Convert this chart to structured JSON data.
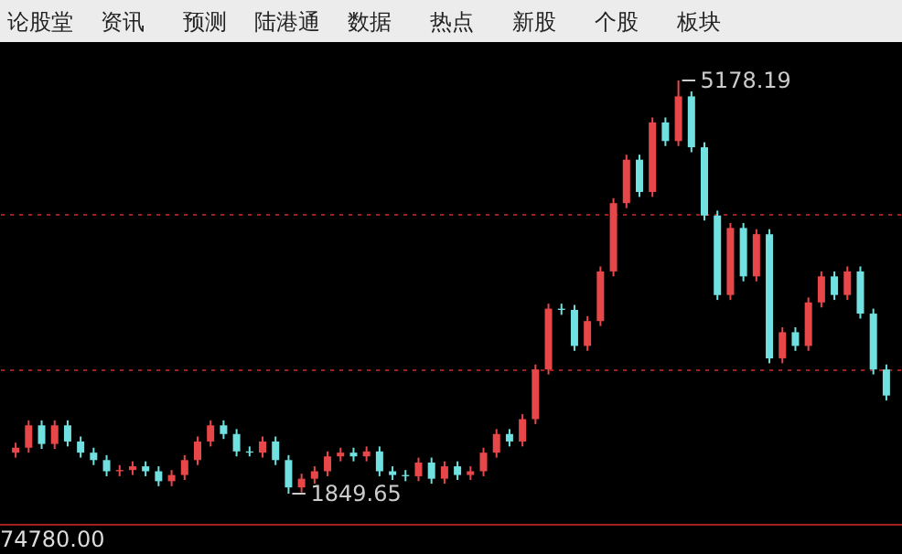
{
  "chart_data": {
    "type": "candlestick",
    "categories": [
      null,
      null,
      null,
      null,
      null,
      null,
      null,
      null,
      null,
      null,
      null,
      null,
      null,
      null,
      null,
      null,
      null,
      null,
      null,
      null,
      null,
      null,
      null,
      null,
      null,
      null,
      null,
      null,
      null,
      null,
      null,
      null,
      null,
      null,
      null,
      null,
      null,
      null,
      null,
      null,
      null,
      null,
      null,
      null,
      null,
      null,
      null,
      null,
      null,
      null,
      null,
      null,
      null,
      null,
      null,
      null,
      null,
      null,
      null,
      null,
      null,
      null,
      null,
      null,
      null,
      null,
      null,
      null
    ],
    "ohlc": [
      [
        2180,
        2260,
        2140,
        2220
      ],
      [
        2220,
        2440,
        2180,
        2400
      ],
      [
        2400,
        2440,
        2210,
        2250
      ],
      [
        2250,
        2440,
        2210,
        2400
      ],
      [
        2400,
        2440,
        2230,
        2270
      ],
      [
        2270,
        2310,
        2140,
        2180
      ],
      [
        2180,
        2220,
        2080,
        2120
      ],
      [
        2120,
        2160,
        1990,
        2030
      ],
      [
        2030,
        2080,
        1990,
        2040
      ],
      [
        2040,
        2110,
        2000,
        2070
      ],
      [
        2070,
        2110,
        1990,
        2030
      ],
      [
        2030,
        2070,
        1910,
        1950
      ],
      [
        1950,
        2040,
        1910,
        2000
      ],
      [
        2000,
        2160,
        1960,
        2120
      ],
      [
        2120,
        2310,
        2080,
        2270
      ],
      [
        2270,
        2440,
        2230,
        2400
      ],
      [
        2400,
        2440,
        2290,
        2330
      ],
      [
        2330,
        2370,
        2150,
        2190
      ],
      [
        2190,
        2230,
        2150,
        2180
      ],
      [
        2180,
        2310,
        2140,
        2270
      ],
      [
        2270,
        2310,
        2080,
        2120
      ],
      [
        2120,
        2160,
        1849.65,
        1900
      ],
      [
        1900,
        2010,
        1860,
        1970
      ],
      [
        1970,
        2070,
        1930,
        2030
      ],
      [
        2030,
        2190,
        1990,
        2150
      ],
      [
        2150,
        2220,
        2110,
        2180
      ],
      [
        2180,
        2220,
        2110,
        2150
      ],
      [
        2150,
        2230,
        2110,
        2190
      ],
      [
        2190,
        2230,
        1990,
        2030
      ],
      [
        2030,
        2070,
        1960,
        2000
      ],
      [
        2000,
        2040,
        1950,
        1990
      ],
      [
        1990,
        2140,
        1950,
        2100
      ],
      [
        2100,
        2140,
        1930,
        1970
      ],
      [
        1970,
        2110,
        1930,
        2070
      ],
      [
        2070,
        2110,
        1960,
        2000
      ],
      [
        2000,
        2070,
        1960,
        2030
      ],
      [
        2030,
        2220,
        1990,
        2180
      ],
      [
        2180,
        2370,
        2140,
        2330
      ],
      [
        2330,
        2370,
        2230,
        2270
      ],
      [
        2270,
        2490,
        2230,
        2450
      ],
      [
        2450,
        2890,
        2410,
        2850
      ],
      [
        2850,
        3380,
        2810,
        3340
      ],
      [
        3340,
        3380,
        3290,
        3330
      ],
      [
        3330,
        3370,
        3000,
        3040
      ],
      [
        3040,
        3280,
        3000,
        3240
      ],
      [
        3240,
        3680,
        3200,
        3640
      ],
      [
        3640,
        4230,
        3600,
        4190
      ],
      [
        4190,
        4580,
        4150,
        4540
      ],
      [
        4540,
        4580,
        4240,
        4280
      ],
      [
        4280,
        4880,
        4240,
        4840
      ],
      [
        4840,
        4880,
        4650,
        4690
      ],
      [
        4690,
        5178.19,
        4650,
        5050
      ],
      [
        5050,
        5090,
        4600,
        4640
      ],
      [
        4640,
        4680,
        4050,
        4090
      ],
      [
        4090,
        4130,
        3410,
        3450
      ],
      [
        3450,
        4030,
        3410,
        3990
      ],
      [
        3990,
        4030,
        3560,
        3600
      ],
      [
        3600,
        3980,
        3560,
        3940
      ],
      [
        3940,
        3980,
        2900,
        2940
      ],
      [
        2940,
        3190,
        2900,
        3150
      ],
      [
        3150,
        3190,
        3000,
        3040
      ],
      [
        3040,
        3430,
        3000,
        3390
      ],
      [
        3390,
        3640,
        3350,
        3600
      ],
      [
        3600,
        3640,
        3410,
        3450
      ],
      [
        3450,
        3680,
        3410,
        3640
      ],
      [
        3640,
        3680,
        3260,
        3300
      ],
      [
        3300,
        3340,
        2810,
        2850
      ],
      [
        2850,
        2890,
        2600,
        2640
      ]
    ],
    "colors": [
      "#e8474a",
      "#e8474a",
      "#70e0e0",
      "#e8474a",
      "#70e0e0",
      "#70e0e0",
      "#70e0e0",
      "#70e0e0",
      "#e8474a",
      "#e8474a",
      "#70e0e0",
      "#70e0e0",
      "#e8474a",
      "#e8474a",
      "#e8474a",
      "#e8474a",
      "#70e0e0",
      "#70e0e0",
      "#70e0e0",
      "#e8474a",
      "#70e0e0",
      "#70e0e0",
      "#e8474a",
      "#e8474a",
      "#e8474a",
      "#e8474a",
      "#70e0e0",
      "#e8474a",
      "#70e0e0",
      "#70e0e0",
      "#70e0e0",
      "#e8474a",
      "#70e0e0",
      "#e8474a",
      "#70e0e0",
      "#e8474a",
      "#e8474a",
      "#e8474a",
      "#70e0e0",
      "#e8474a",
      "#e8474a",
      "#e8474a",
      "#70e0e0",
      "#70e0e0",
      "#e8474a",
      "#e8474a",
      "#e8474a",
      "#e8474a",
      "#70e0e0",
      "#e8474a",
      "#70e0e0",
      "#e8474a",
      "#70e0e0",
      "#70e0e0",
      "#70e0e0",
      "#e8474a",
      "#70e0e0",
      "#e8474a",
      "#70e0e0",
      "#e8474a",
      "#70e0e0",
      "#e8474a",
      "#e8474a",
      "#70e0e0",
      "#e8474a",
      "#70e0e0",
      "#70e0e0",
      "#70e0e0"
    ],
    "yticks": [
      {
        "value": 2850,
        "label": null
      },
      {
        "value": 4100,
        "label": null
      }
    ],
    "grid": "y",
    "annotations": [
      "5178.19",
      "1849.65",
      "论股堂",
      "资讯",
      "预测",
      "陆港通",
      "数据",
      "热点",
      "新股",
      "个股",
      "板块",
      "74780.00"
    ]
  }
}
